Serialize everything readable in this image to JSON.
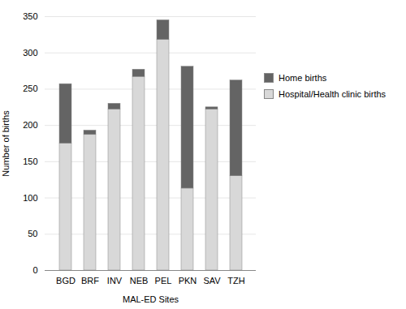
{
  "chart_data": {
    "type": "bar",
    "stacked": true,
    "xlabel": "MAL-ED Sites",
    "ylabel": "Number of births",
    "categories": [
      "BGD",
      "BRF",
      "INV",
      "NEB",
      "PEL",
      "PKN",
      "SAV",
      "TZH"
    ],
    "series": [
      {
        "name": "Hospital/Health clinic births",
        "color": "#d8d8d8",
        "values": [
          175,
          187,
          222,
          267,
          318,
          113,
          222,
          130
        ]
      },
      {
        "name": "Home births",
        "color": "#646464",
        "values": [
          82,
          6,
          8,
          10,
          27,
          168,
          3,
          132
        ]
      }
    ],
    "ylim": [
      0,
      350
    ],
    "yticks": [
      0,
      50,
      100,
      150,
      200,
      250,
      300,
      350
    ],
    "grid": "y",
    "legend": "right"
  }
}
